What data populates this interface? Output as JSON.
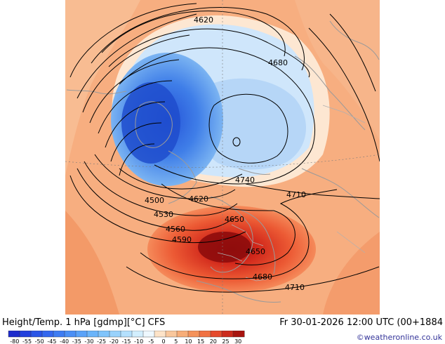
{
  "title": "Height/Temp. 1 hPa [gdmp][°C] CFS",
  "datetime": "Fr 30-01-2026 12:00 UTC (00+1884",
  "credit": "©weatheronline.co.uk",
  "contour_labels": [
    "4620",
    "4680",
    "4740",
    "4710",
    "4500",
    "4620",
    "4650",
    "4530",
    "4560",
    "4590",
    "4650",
    "4680",
    "4710"
  ],
  "colorbar": {
    "ticks": [
      "-80",
      "-55",
      "-50",
      "-45",
      "-40",
      "-35",
      "-30",
      "-25",
      "-20",
      "-15",
      "-10",
      "-5",
      "0",
      "5",
      "10",
      "15",
      "20",
      "25",
      "30"
    ],
    "colors": [
      "#1e2ccc",
      "#2240dd",
      "#2a55e6",
      "#3468ee",
      "#3e7cf2",
      "#4b8ff5",
      "#5aa2f8",
      "#6ab4fa",
      "#80c4fb",
      "#98d2fc",
      "#b4e0fd",
      "#d2eefe",
      "#eef8ff",
      "#fde3c8",
      "#f9c79c",
      "#f7ad78",
      "#f4925a",
      "#f07142",
      "#e54a2c",
      "#cc2a1c",
      "#a8140f"
    ]
  },
  "colors": {
    "warm_background": "#f7b285",
    "cold_core": "#2a60e0",
    "hot_core": "#c82018",
    "coastline": "#a0a0a0",
    "contour": "#000000"
  }
}
